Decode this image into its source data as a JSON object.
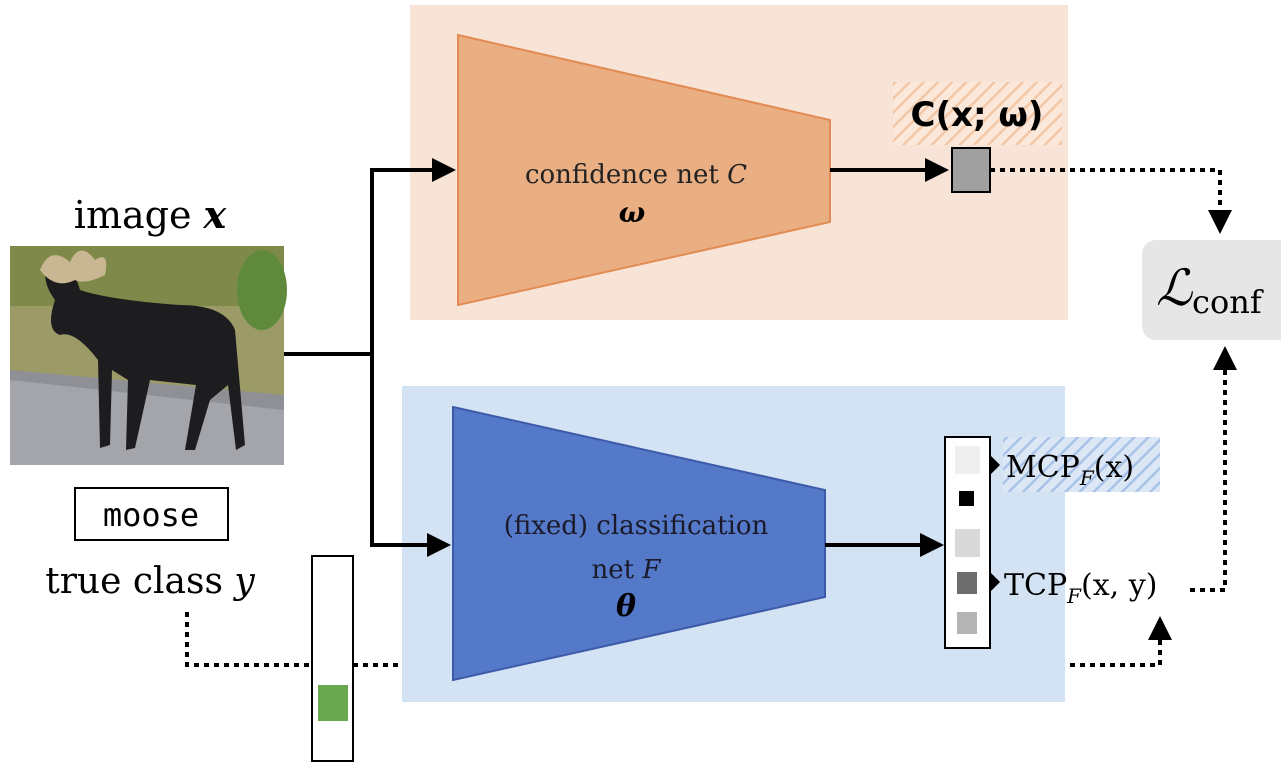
{
  "image": {
    "label": "image",
    "symbol": "x"
  },
  "true_class": {
    "name": "moose",
    "label": "true class",
    "symbol": "y"
  },
  "confidence_net": {
    "label": "confidence net",
    "symbol": "C",
    "params": "ω",
    "output": "C(x; ω)"
  },
  "classification_net": {
    "label_line1": "(fixed) classification",
    "label_line2": "net",
    "symbol": "F",
    "params": "θ"
  },
  "outputs": {
    "mcp": {
      "label": "MCP",
      "subscript": "F",
      "args": "(x)"
    },
    "tcp": {
      "label": "TCP",
      "subscript": "F",
      "args": "(x, y)"
    }
  },
  "loss": {
    "symbol": "ℒ",
    "subscript": "conf"
  }
}
